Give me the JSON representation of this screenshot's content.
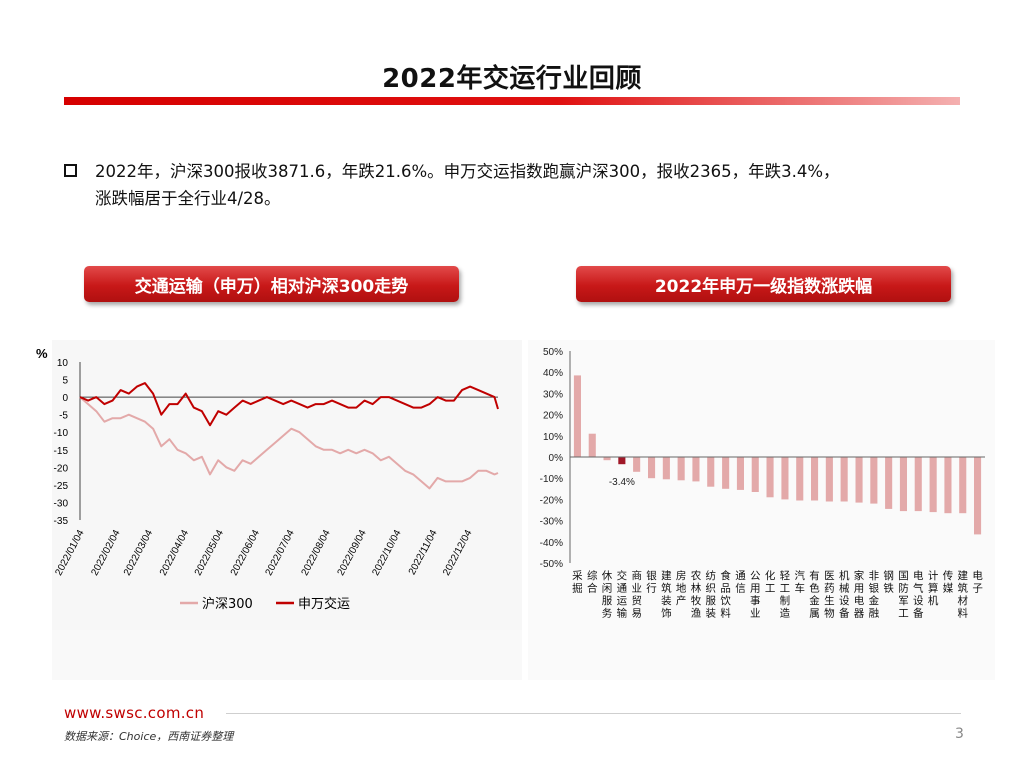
{
  "title": "2022年交运行业回顾",
  "bullet": {
    "line1": "2022年，沪深300报收3871.6，年跌21.6%。申万交运指数跑赢沪深300，报收2365，年跌3.4%，",
    "line2": "涨跌幅居于全行业4/28。"
  },
  "left_chart_header": "交通运输（申万）相对沪深300走势",
  "right_chart_header": "2022年申万一级指数涨跌幅",
  "footer": {
    "url": "www.swsc.com.cn",
    "source": "数据来源：Choice，西南证券整理",
    "page": "3"
  },
  "colors": {
    "brand_red": "#c00000",
    "line_hs300": "#e3a9a9",
    "line_transport": "#c00000",
    "bar_fill": "#e3a9a9",
    "bar_highlight": "#a01828"
  },
  "chart_data": [
    {
      "type": "line",
      "ylabel": "%",
      "ylim": [
        -35,
        10
      ],
      "yticks": [
        "10",
        "5",
        "0",
        "-5",
        "-10",
        "-15",
        "-20",
        "-25",
        "-30",
        "-35"
      ],
      "yticks_values": [
        10,
        5,
        0,
        -5,
        -10,
        -15,
        -20,
        -25,
        -30,
        -35
      ],
      "xtick_labels": [
        "2022/01/04",
        "2022/02/04",
        "2022/03/04",
        "2022/04/04",
        "2022/05/04",
        "2022/06/04",
        "2022/07/04",
        "2022/08/04",
        "2022/09/04",
        "2022/10/04",
        "2022/11/04",
        "2022/12/04"
      ],
      "x_dates": [
        "2022/01/04",
        "2022/01/11",
        "2022/01/18",
        "2022/01/25",
        "2022/02/01",
        "2022/02/08",
        "2022/02/15",
        "2022/02/22",
        "2022/03/01",
        "2022/03/08",
        "2022/03/15",
        "2022/03/22",
        "2022/03/29",
        "2022/04/05",
        "2022/04/12",
        "2022/04/19",
        "2022/04/26",
        "2022/05/03",
        "2022/05/10",
        "2022/05/17",
        "2022/05/24",
        "2022/05/31",
        "2022/06/07",
        "2022/06/14",
        "2022/06/21",
        "2022/06/28",
        "2022/07/05",
        "2022/07/12",
        "2022/07/19",
        "2022/07/26",
        "2022/08/02",
        "2022/08/09",
        "2022/08/16",
        "2022/08/23",
        "2022/08/30",
        "2022/09/06",
        "2022/09/13",
        "2022/09/20",
        "2022/09/27",
        "2022/10/04",
        "2022/10/11",
        "2022/10/18",
        "2022/10/25",
        "2022/11/01",
        "2022/11/08",
        "2022/11/15",
        "2022/11/22",
        "2022/11/29",
        "2022/12/06",
        "2022/12/13",
        "2022/12/20",
        "2022/12/27",
        "2022/12/30"
      ],
      "series": [
        {
          "name": "沪深300",
          "color": "#e3a9a9",
          "values": [
            0,
            -2,
            -4,
            -7,
            -6,
            -6,
            -5,
            -6,
            -7,
            -9,
            -14,
            -12,
            -15,
            -16,
            -18,
            -17,
            -22,
            -18,
            -20,
            -21,
            -18,
            -19,
            -17,
            -15,
            -13,
            -11,
            -9,
            -10,
            -12,
            -14,
            -15,
            -15,
            -16,
            -15,
            -16,
            -15,
            -16,
            -18,
            -17,
            -19,
            -21,
            -22,
            -24,
            -26,
            -23,
            -24,
            -24,
            -24,
            -23,
            -21,
            -21,
            -22,
            -21.6
          ]
        },
        {
          "name": "申万交运",
          "color": "#c00000",
          "values": [
            0,
            -1,
            0,
            -2,
            -1,
            2,
            1,
            3,
            4,
            1,
            -5,
            -2,
            -2,
            1,
            -3,
            -4,
            -8,
            -4,
            -5,
            -3,
            -1,
            -2,
            -1,
            0,
            -1,
            -2,
            -1,
            -2,
            -3,
            -2,
            -2,
            -1,
            -2,
            -3,
            -3,
            -1,
            -2,
            0,
            0,
            -1,
            -2,
            -3,
            -3,
            -2,
            0,
            -1,
            -1,
            2,
            3,
            2,
            1,
            0,
            -3.4
          ]
        }
      ]
    },
    {
      "type": "bar",
      "ylim": [
        -50,
        50
      ],
      "yticks": [
        "50%",
        "40%",
        "30%",
        "20%",
        "10%",
        "0%",
        "-10%",
        "-20%",
        "-30%",
        "-40%",
        "-50%"
      ],
      "yticks_values": [
        50,
        40,
        30,
        20,
        10,
        0,
        -10,
        -20,
        -30,
        -40,
        -50
      ],
      "categories": [
        "采掘",
        "综合",
        "休闲服务",
        "交通运输",
        "商业贸易",
        "银行",
        "建筑装饰",
        "房地产",
        "农林牧渔",
        "纺织服装",
        "食品饮料",
        "通信",
        "公用事业",
        "化工",
        "轻工制造",
        "汽车",
        "有色金属",
        "医药生物",
        "机械设备",
        "家用电器",
        "非银金融",
        "钢铁",
        "国防军工",
        "电气设备",
        "计算机",
        "传媒",
        "建筑材料",
        "电子"
      ],
      "category_labels": [
        "采掘",
        "综合",
        "休闲服务",
        "交通运输",
        "商业贸易",
        "银行",
        "建筑装饰",
        "房地产",
        "农林牧渔",
        "纺织服装",
        "食品饮料",
        "通信",
        "公用事业",
        "化工",
        "轻工制造",
        "汽车",
        "有色金属",
        "医药生物",
        "机械设备",
        "家用电器",
        "非银金融",
        "钢铁",
        "国防军工",
        "电气设备",
        "计算机",
        "传媒",
        "建筑材料",
        "电子"
      ],
      "values": [
        38.5,
        11,
        -1.5,
        -3.4,
        -7,
        -10,
        -10.5,
        -11,
        -11.5,
        -14,
        -15,
        -15.5,
        -16.5,
        -19,
        -20,
        -20.5,
        -20.5,
        -21,
        -21,
        -21.5,
        -22,
        -24.5,
        -25.5,
        -25.5,
        -26,
        -26.5,
        -26.5,
        -36.5
      ],
      "highlight_index": 3,
      "data_labels": [
        {
          "index": 3,
          "text": "-3.4%"
        }
      ]
    }
  ]
}
